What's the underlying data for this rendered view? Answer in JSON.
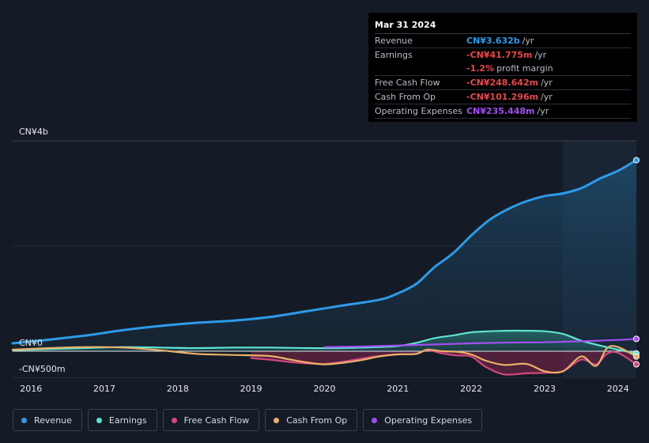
{
  "chart_data": {
    "type": "area",
    "ylabel_top": "CN¥4b",
    "ylabel_zero": "CN¥0",
    "ylabel_neg": "-CN¥500m",
    "ylim": [
      -500,
      4000
    ],
    "xlim": [
      2015.75,
      2024.25
    ],
    "x_ticks": [
      "2016",
      "2017",
      "2018",
      "2019",
      "2020",
      "2021",
      "2022",
      "2023",
      "2024"
    ],
    "highlight_from": 2023.25,
    "series": [
      {
        "key": "revenue",
        "name": "Revenue",
        "color": "#2d9be8",
        "fill": true,
        "points": [
          [
            2015.75,
            150
          ],
          [
            2016.25,
            220
          ],
          [
            2016.75,
            300
          ],
          [
            2017.25,
            400
          ],
          [
            2017.75,
            480
          ],
          [
            2018.25,
            540
          ],
          [
            2018.75,
            580
          ],
          [
            2019.25,
            650
          ],
          [
            2019.75,
            760
          ],
          [
            2020.25,
            870
          ],
          [
            2020.75,
            980
          ],
          [
            2021.0,
            1100
          ],
          [
            2021.25,
            1280
          ],
          [
            2021.5,
            1600
          ],
          [
            2021.75,
            1860
          ],
          [
            2022.0,
            2200
          ],
          [
            2022.25,
            2500
          ],
          [
            2022.5,
            2700
          ],
          [
            2022.75,
            2850
          ],
          [
            2023.0,
            2950
          ],
          [
            2023.25,
            3000
          ],
          [
            2023.5,
            3100
          ],
          [
            2023.75,
            3280
          ],
          [
            2024.0,
            3430
          ],
          [
            2024.25,
            3632
          ]
        ]
      },
      {
        "key": "earnings",
        "name": "Earnings",
        "color": "#5fe3d0",
        "fill": true,
        "points": [
          [
            2015.75,
            20
          ],
          [
            2016.25,
            40
          ],
          [
            2016.75,
            60
          ],
          [
            2017.25,
            80
          ],
          [
            2017.75,
            70
          ],
          [
            2018.25,
            60
          ],
          [
            2018.75,
            70
          ],
          [
            2019.25,
            70
          ],
          [
            2019.75,
            60
          ],
          [
            2020.25,
            60
          ],
          [
            2020.75,
            80
          ],
          [
            2021.0,
            100
          ],
          [
            2021.25,
            160
          ],
          [
            2021.5,
            250
          ],
          [
            2021.75,
            300
          ],
          [
            2022.0,
            360
          ],
          [
            2022.25,
            380
          ],
          [
            2022.5,
            390
          ],
          [
            2022.75,
            390
          ],
          [
            2023.0,
            380
          ],
          [
            2023.25,
            330
          ],
          [
            2023.5,
            200
          ],
          [
            2023.75,
            110
          ],
          [
            2024.0,
            30
          ],
          [
            2024.25,
            -42
          ]
        ]
      },
      {
        "key": "fcf",
        "name": "Free Cash Flow",
        "color": "#d4477f",
        "fill": true,
        "points": [
          [
            2019.0,
            -130
          ],
          [
            2019.25,
            -160
          ],
          [
            2019.5,
            -200
          ],
          [
            2019.75,
            -230
          ],
          [
            2020.0,
            -240
          ],
          [
            2020.25,
            -200
          ],
          [
            2020.5,
            -140
          ],
          [
            2020.75,
            -90
          ],
          [
            2021.0,
            -60
          ],
          [
            2021.25,
            -50
          ],
          [
            2021.4,
            20
          ],
          [
            2021.6,
            -40
          ],
          [
            2021.8,
            -80
          ],
          [
            2022.0,
            -100
          ],
          [
            2022.2,
            -300
          ],
          [
            2022.45,
            -440
          ],
          [
            2022.75,
            -420
          ],
          [
            2023.0,
            -410
          ],
          [
            2023.25,
            -380
          ],
          [
            2023.5,
            -160
          ],
          [
            2023.7,
            -250
          ],
          [
            2023.85,
            -50
          ],
          [
            2024.0,
            -30
          ],
          [
            2024.25,
            -249
          ]
        ]
      },
      {
        "key": "cfo",
        "name": "Cash From Op",
        "color": "#eab069",
        "fill": false,
        "points": [
          [
            2015.75,
            30
          ],
          [
            2016.25,
            60
          ],
          [
            2016.75,
            80
          ],
          [
            2017.25,
            70
          ],
          [
            2017.75,
            20
          ],
          [
            2018.25,
            -50
          ],
          [
            2018.75,
            -70
          ],
          [
            2019.25,
            -90
          ],
          [
            2019.5,
            -150
          ],
          [
            2019.75,
            -210
          ],
          [
            2020.0,
            -250
          ],
          [
            2020.25,
            -220
          ],
          [
            2020.5,
            -170
          ],
          [
            2020.75,
            -100
          ],
          [
            2021.0,
            -60
          ],
          [
            2021.25,
            -50
          ],
          [
            2021.4,
            30
          ],
          [
            2021.6,
            0
          ],
          [
            2021.8,
            -10
          ],
          [
            2022.0,
            -60
          ],
          [
            2022.2,
            -180
          ],
          [
            2022.45,
            -260
          ],
          [
            2022.75,
            -240
          ],
          [
            2023.0,
            -380
          ],
          [
            2023.25,
            -380
          ],
          [
            2023.5,
            -100
          ],
          [
            2023.7,
            -280
          ],
          [
            2023.85,
            60
          ],
          [
            2024.0,
            80
          ],
          [
            2024.25,
            -101
          ]
        ]
      },
      {
        "key": "opex",
        "name": "Operating Expenses",
        "color": "#a24ef0",
        "fill": false,
        "points": [
          [
            2020.0,
            80
          ],
          [
            2020.5,
            90
          ],
          [
            2021.0,
            110
          ],
          [
            2021.5,
            130
          ],
          [
            2022.0,
            150
          ],
          [
            2022.5,
            165
          ],
          [
            2023.0,
            170
          ],
          [
            2023.5,
            190
          ],
          [
            2024.0,
            215
          ],
          [
            2024.25,
            235
          ]
        ]
      }
    ]
  },
  "tooltip": {
    "date": "Mar 31 2024",
    "rows": [
      {
        "label": "Revenue",
        "value": "CN¥3.632b",
        "unit": "/yr",
        "color": "#2d9be8"
      },
      {
        "label": "Earnings",
        "value": "-CN¥41.775m",
        "unit": "/yr",
        "color": "#e8474c"
      },
      {
        "label": "",
        "value": "-1.2%",
        "unit": "profit margin",
        "color": "#e8474c"
      },
      {
        "label": "Free Cash Flow",
        "value": "-CN¥248.642m",
        "unit": "/yr",
        "color": "#e8474c"
      },
      {
        "label": "Cash From Op",
        "value": "-CN¥101.296m",
        "unit": "/yr",
        "color": "#e8474c"
      },
      {
        "label": "Operating Expenses",
        "value": "CN¥235.448m",
        "unit": "/yr",
        "color": "#a24ef0"
      }
    ]
  },
  "legend": [
    {
      "label": "Revenue",
      "color": "#2d9be8"
    },
    {
      "label": "Earnings",
      "color": "#5fe3d0"
    },
    {
      "label": "Free Cash Flow",
      "color": "#d4477f"
    },
    {
      "label": "Cash From Op",
      "color": "#eab069"
    },
    {
      "label": "Operating Expenses",
      "color": "#a24ef0"
    }
  ]
}
